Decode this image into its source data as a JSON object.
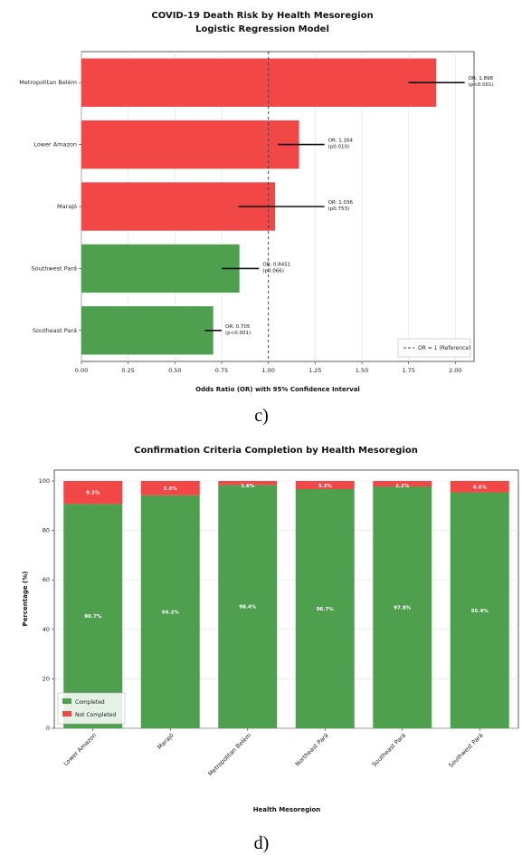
{
  "chart_data": [
    {
      "type": "bar",
      "orientation": "horizontal",
      "title": "COVID-19 Death Risk by Health Mesoregion",
      "subtitle": "Logistic Regression Model",
      "xlabel": "Odds Ratio (OR) with 95% Confidence Interval",
      "ylabel": "",
      "xlim": [
        0,
        2.1
      ],
      "xticks": [
        "0.00",
        "0.25",
        "0.50",
        "0.75",
        "1.00",
        "1.25",
        "1.50",
        "1.75",
        "2.00"
      ],
      "reference_line": {
        "value": 1.0,
        "label": "OR = 1 (Reference)"
      },
      "legend_position": "bottom-right",
      "grid": true,
      "categories": [
        "Metropolitan Belém",
        "Lower Amazon",
        "Marajó",
        "Southwest Pará",
        "Southeast Pará"
      ],
      "values": [
        1.898,
        1.164,
        1.036,
        0.8451,
        0.705
      ],
      "ci_low": [
        1.75,
        1.05,
        0.84,
        0.75,
        0.66
      ],
      "ci_high": [
        2.05,
        1.3,
        1.3,
        0.95,
        0.75
      ],
      "annotations": [
        [
          "OR: 1.898",
          "(p<0.001)"
        ],
        [
          "OR: 1.164",
          "(p0.010)"
        ],
        [
          "OR: 1.036",
          "(p0.753)"
        ],
        [
          "OR: 0.8451",
          "(p0.066)"
        ],
        [
          "OR: 0.705",
          "(p<0.001)"
        ]
      ],
      "colors": [
        "#f24747",
        "#f24747",
        "#f24747",
        "#4ea04e",
        "#4ea04e"
      ]
    },
    {
      "type": "bar",
      "stacked": true,
      "title": "Confirmation Criteria Completion by Health Mesoregion",
      "xlabel": "Health Mesoregion",
      "ylabel": "Percentage (%)",
      "ylim": [
        0,
        100
      ],
      "yticks": [
        "0",
        "20",
        "40",
        "60",
        "80",
        "100"
      ],
      "grid": true,
      "legend_position": "bottom-left",
      "categories": [
        "Lower Amazon",
        "Marajó",
        "Metropolitan Belém",
        "Northeast Pará",
        "Southeast Pará",
        "Southwest Pará"
      ],
      "series": [
        {
          "name": "Completed",
          "color": "#4ea04e",
          "values": [
            90.7,
            94.2,
            98.4,
            96.7,
            97.8,
            95.4
          ],
          "labels": [
            "90.7%",
            "94.2%",
            "98.4%",
            "96.7%",
            "97.8%",
            "95.4%"
          ]
        },
        {
          "name": "Not Completed",
          "color": "#f24747",
          "values": [
            9.3,
            5.8,
            1.6,
            3.3,
            2.2,
            4.6
          ],
          "labels": [
            "9.3%",
            "5.8%",
            "1.6%",
            "3.3%",
            "2.2%",
            "4.6%"
          ]
        }
      ]
    }
  ],
  "captions": {
    "c": "c)",
    "d": "d)"
  }
}
